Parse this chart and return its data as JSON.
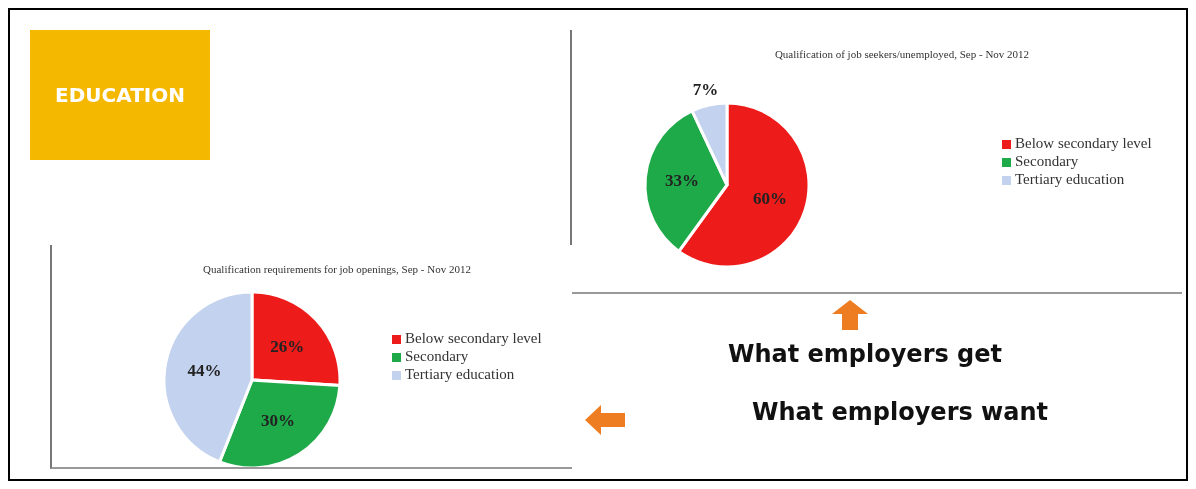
{
  "chart_data": [
    {
      "type": "other",
      "title": "EDUCATION"
    },
    {
      "type": "pie",
      "title": "Qualification of job seekers/unemployed, Sep - Nov 2012",
      "categories": [
        "Below secondary level",
        "Secondary",
        "Tertiary education"
      ],
      "values": [
        60,
        33,
        7
      ],
      "value_labels": [
        "60%",
        "33%",
        "7%"
      ],
      "colors": [
        "#ee1b1b",
        "#1faa4a",
        "#c3d2ee"
      ],
      "legend": "right",
      "annotations": [
        "What employers get"
      ]
    },
    {
      "type": "pie",
      "title": "Qualification requirements for job openings, Sep - Nov 2012",
      "categories": [
        "Below secondary level",
        "Secondary",
        "Tertiary education"
      ],
      "values": [
        26,
        30,
        44
      ],
      "value_labels": [
        "26%",
        "30%",
        "44%"
      ],
      "colors": [
        "#ee1b1b",
        "#1faa4a",
        "#c3d2ee"
      ],
      "legend": "right",
      "annotations": [
        "What employers want"
      ]
    }
  ]
}
